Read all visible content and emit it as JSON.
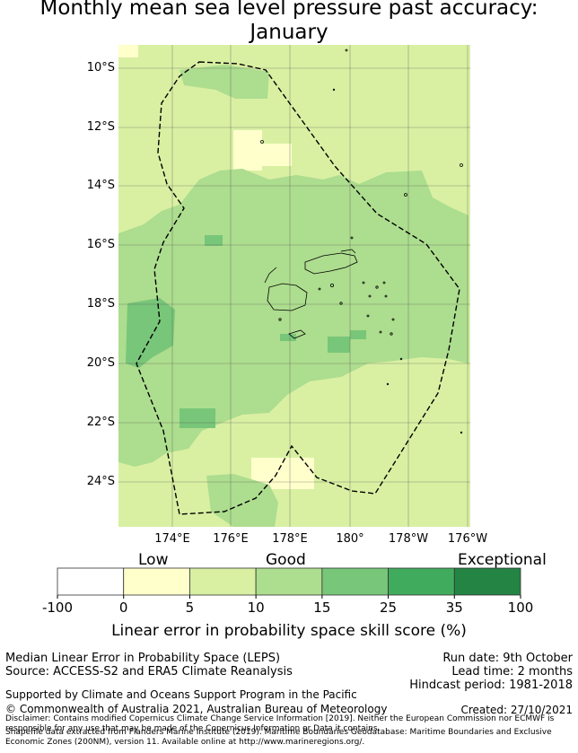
{
  "title": {
    "line1": "Monthly mean sea level pressure past accuracy:",
    "line2": "January"
  },
  "map": {
    "lat_labels": [
      "10°S",
      "12°S",
      "14°S",
      "16°S",
      "18°S",
      "20°S",
      "22°S",
      "24°S"
    ],
    "lon_labels": [
      "174°E",
      "176°E",
      "178°E",
      "180°",
      "178°W",
      "176°W"
    ],
    "boundary": "Fiji Exclusive Economic Zone (dashed line)",
    "dominant_category": "Good"
  },
  "colorbar": {
    "category_labels": [
      "Low",
      "Good",
      "Exceptional"
    ],
    "tick_labels": [
      "-100",
      "0",
      "5",
      "10",
      "15",
      "25",
      "35",
      "100"
    ],
    "colors": [
      "#ffffff",
      "#ffffcc",
      "#d9f0a3",
      "#addd8e",
      "#78c679",
      "#41ab5d",
      "#238443"
    ],
    "title": "Linear error in probability space skill score (%)"
  },
  "info": {
    "method": "Median Linear Error in Probability Space (LEPS)",
    "source": "Source: ACCESS-S2 and ERA5 Climate Reanalysis",
    "run_date": "Run date: 9th October",
    "lead_time": "Lead time: 2 months",
    "hindcast": "Hindcast period: 1981-2018",
    "supported": "Supported by Climate and Oceans Support Program in the Pacific",
    "copyright": "© Commonwealth of Australia 2021, Australian Bureau of Meteorology",
    "created": "Created: 27/10/2021",
    "disclaimer": "Disclaimer: Contains modified Copernicus Climate Change Service Information [2019]. Neither the European Commission nor ECMWF is responsible for any use that may be made of the Copernicus Information or Data it contains.",
    "shapefile": "Shapefile data extracted from Flanders Marine Institute (2019). Maritime Boundaries Geodatabase: Maritime Boundaries and Exclusive Economic Zones (200NM), version 11. Available online at http://www.marineregions.org/."
  }
}
